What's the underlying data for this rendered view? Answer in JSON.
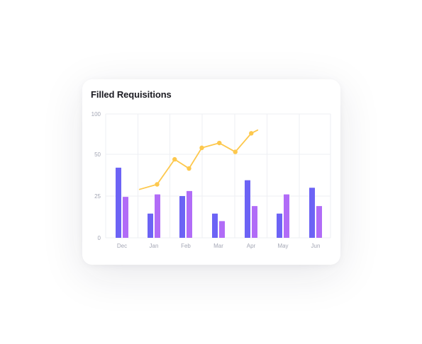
{
  "card": {
    "title": "Filled Requisitions"
  },
  "chart_data": {
    "type": "bar",
    "title": "Filled Requisitions",
    "xlabel": "",
    "ylabel": "",
    "categories": [
      "Dec",
      "Jan",
      "Feb",
      "Mar",
      "Apr",
      "May",
      "Jun"
    ],
    "y_ticks": [
      {
        "value": 0,
        "label": "0"
      },
      {
        "value": 25,
        "label": "25"
      },
      {
        "value": 50,
        "label": "50"
      },
      {
        "value": 100,
        "label": "100"
      }
    ],
    "ylim": [
      0,
      100
    ],
    "grid": true,
    "legend": "none",
    "series": [
      {
        "type": "bar",
        "values": [
          42,
          14.5,
          25,
          14.5,
          34.5,
          14.5,
          30
        ],
        "color": "#6c63f5"
      },
      {
        "type": "bar",
        "values": [
          24.5,
          26,
          28,
          10,
          19,
          26,
          19
        ],
        "color": "#b16cf7"
      },
      {
        "type": "line",
        "color": "#fdc84d",
        "points": [
          {
            "x": 0.55,
            "y": 29
          },
          {
            "x": 1.1,
            "y": 32
          },
          {
            "x": 1.65,
            "y": 47
          },
          {
            "x": 2.1,
            "y": 41.5
          },
          {
            "x": 2.5,
            "y": 58
          },
          {
            "x": 3.05,
            "y": 64
          },
          {
            "x": 3.55,
            "y": 53
          },
          {
            "x": 4.05,
            "y": 76
          },
          {
            "x": 4.25,
            "y": 80
          }
        ]
      }
    ],
    "colors": {
      "grid": "#eeeff3",
      "tick_text": "#a3a6b4"
    }
  }
}
